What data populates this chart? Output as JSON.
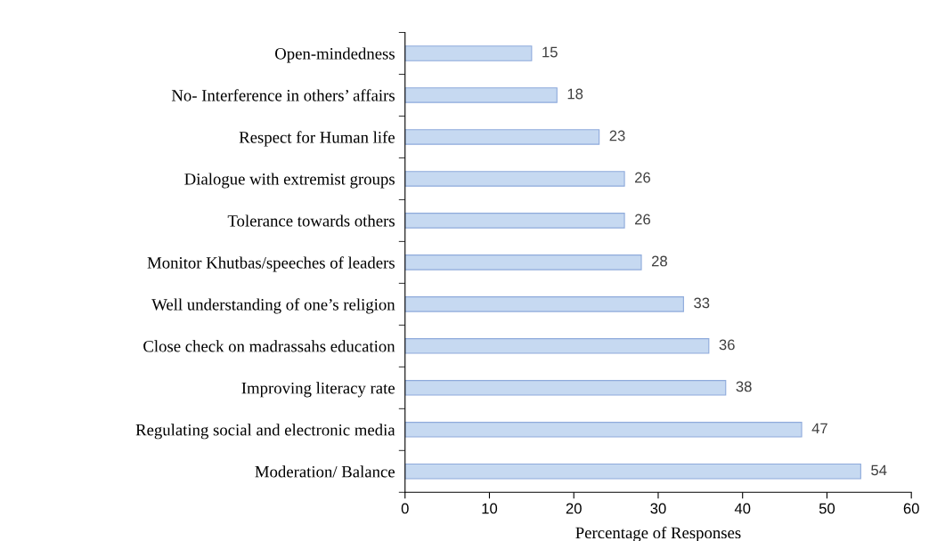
{
  "chart_data": {
    "type": "bar",
    "orientation": "horizontal",
    "xlabel": "Percentage of Responses",
    "categories": [
      "Open-mindedness",
      "No- Interference in others’ affairs",
      "Respect for Human life",
      "Dialogue with extremist groups",
      "Tolerance towards others",
      "Monitor Khutbas/speeches of leaders",
      "Well understanding of one’s religion",
      "Close check on madrassahs education",
      "Improving literacy rate",
      "Regulating social and electronic media",
      "Moderation/ Balance"
    ],
    "values": [
      15,
      18,
      23,
      26,
      26,
      28,
      33,
      36,
      38,
      47,
      54
    ],
    "color": "#c6d9f1",
    "xlim": [
      0,
      60
    ],
    "xticks": [
      0,
      10,
      20,
      30,
      40,
      50,
      60
    ],
    "data_labels": true,
    "grid": false
  }
}
